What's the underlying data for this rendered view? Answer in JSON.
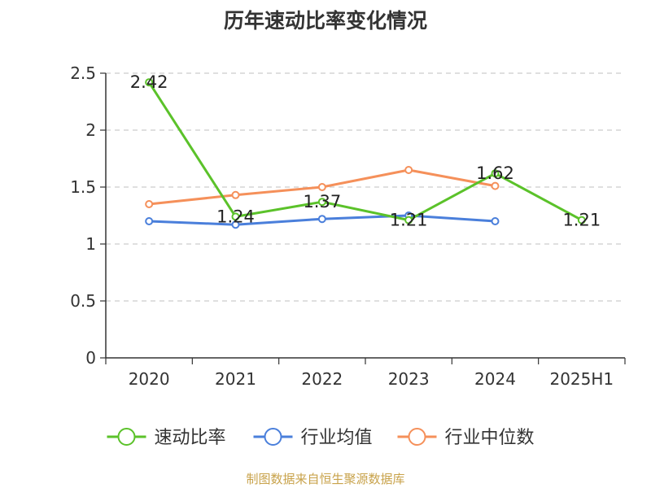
{
  "chart_data": {
    "type": "line",
    "title": "历年速动比率变化情况",
    "categories": [
      "2020",
      "2021",
      "2022",
      "2023",
      "2024",
      "2025H1"
    ],
    "ylim": [
      0,
      2.5
    ],
    "yticks": [
      "0",
      "0.5",
      "1",
      "1.5",
      "2",
      "2.5"
    ],
    "grid": true,
    "legend_position": "bottom",
    "series": [
      {
        "name": "速动比率",
        "color": "#5bc22a",
        "values": [
          2.42,
          1.24,
          1.37,
          1.21,
          1.62,
          1.21
        ],
        "labels": [
          "2.42",
          "1.24",
          "1.37",
          "1.21",
          "1.62",
          "1.21"
        ]
      },
      {
        "name": "行业均值",
        "color": "#4a7fdb",
        "values": [
          1.2,
          1.17,
          1.22,
          1.25,
          1.2,
          null
        ],
        "labels": []
      },
      {
        "name": "行业中位数",
        "color": "#f5905a",
        "values": [
          1.35,
          1.43,
          1.5,
          1.65,
          1.51,
          null
        ],
        "labels": []
      }
    ]
  },
  "source_text": "制图数据来自恒生聚源数据库"
}
